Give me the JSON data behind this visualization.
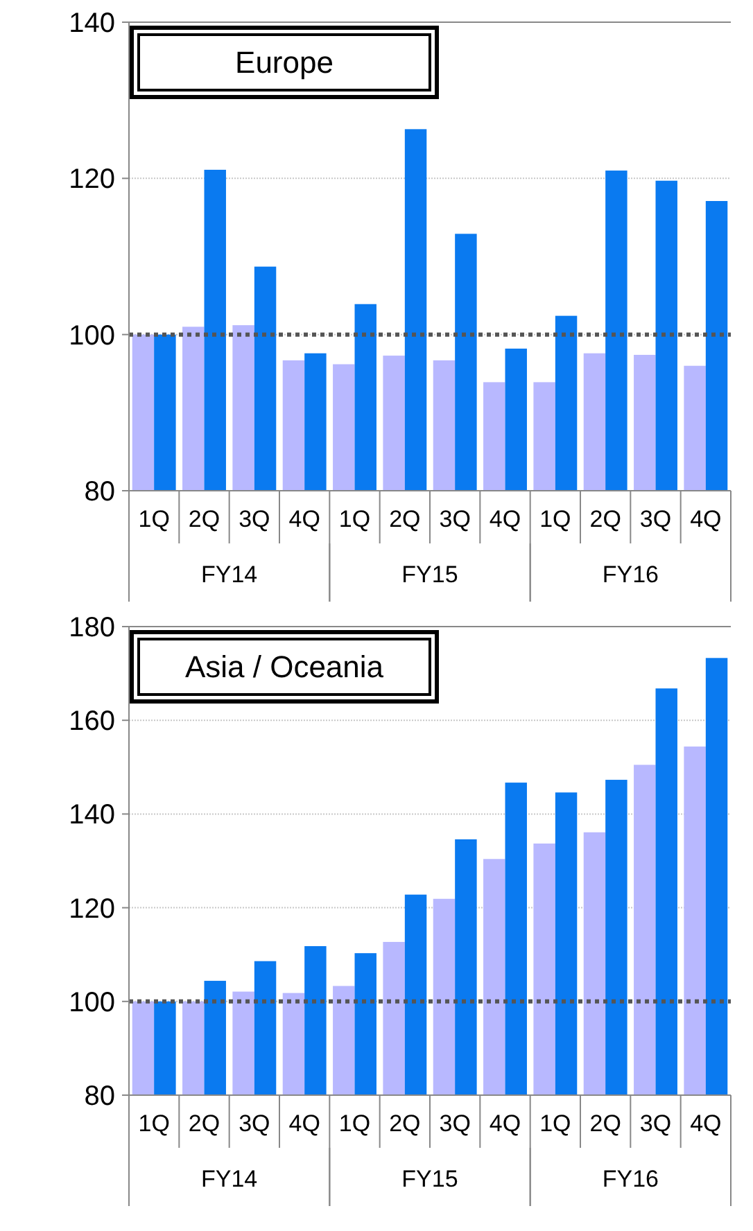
{
  "chart_data": [
    {
      "type": "bar",
      "title": "Europe",
      "categories": [
        "1Q",
        "2Q",
        "3Q",
        "4Q",
        "1Q",
        "2Q",
        "3Q",
        "4Q",
        "1Q",
        "2Q",
        "3Q",
        "4Q"
      ],
      "series": [
        {
          "color": "#b8b8ff",
          "values": [
            100,
            101,
            101.2,
            96.7,
            96.2,
            97.3,
            96.7,
            93.9,
            93.9,
            97.6,
            97.4,
            96
          ]
        },
        {
          "color": "#0a7af0",
          "values": [
            100,
            121.1,
            108.7,
            97.6,
            103.9,
            126.3,
            112.9,
            98.2,
            102.4,
            121,
            119.7,
            117.1
          ]
        }
      ],
      "ylim": [
        80,
        140
      ],
      "yticks": [
        80,
        100,
        120,
        140
      ],
      "grid": "y",
      "ref_lines": [
        {
          "axis": "y",
          "value": 100,
          "line_style": "dotted",
          "color": "#555555"
        }
      ],
      "annotations": [
        "FY14",
        "FY15",
        "FY16"
      ]
    },
    {
      "type": "bar",
      "title": "Asia / Oceania",
      "categories": [
        "1Q",
        "2Q",
        "3Q",
        "4Q",
        "1Q",
        "2Q",
        "3Q",
        "4Q",
        "1Q",
        "2Q",
        "3Q",
        "4Q"
      ],
      "series": [
        {
          "color": "#b8b8ff",
          "values": [
            100,
            100,
            102.1,
            101.8,
            103.3,
            112.7,
            121.9,
            130.4,
            133.7,
            136.1,
            150.5,
            154.4
          ]
        },
        {
          "color": "#0a7af0",
          "values": [
            100,
            104.4,
            108.6,
            111.8,
            110.3,
            122.8,
            134.6,
            146.7,
            144.6,
            147.3,
            166.8,
            173.3
          ]
        }
      ],
      "ylim": [
        80,
        180
      ],
      "yticks": [
        80,
        100,
        120,
        140,
        160,
        180
      ],
      "grid": "y",
      "ref_lines": [
        {
          "axis": "y",
          "value": 100,
          "line_style": "dotted",
          "color": "#555555"
        }
      ],
      "annotations": [
        "FY14",
        "FY15",
        "FY16"
      ]
    }
  ]
}
